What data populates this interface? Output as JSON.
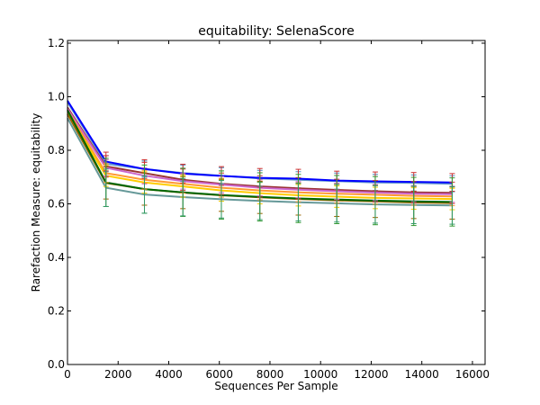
{
  "chart_data": {
    "type": "line",
    "title": "equitability: SelenaScore",
    "xlabel": "Sequences Per Sample",
    "ylabel": "Rarefaction Measure: equitability",
    "xlim": [
      0,
      16500
    ],
    "ylim": [
      0.0,
      1.21
    ],
    "xticks": [
      0,
      2000,
      4000,
      6000,
      8000,
      10000,
      12000,
      14000,
      16000
    ],
    "yticks": [
      0.0,
      0.2,
      0.4,
      0.6,
      0.8,
      1.0,
      1.2
    ],
    "xtick_labels": [
      "0",
      "2000",
      "4000",
      "6000",
      "8000",
      "10000",
      "12000",
      "14000",
      "16000"
    ],
    "ytick_labels": [
      "0.0",
      "0.2",
      "0.4",
      "0.6",
      "0.8",
      "1.0",
      "1.2"
    ],
    "grid": false,
    "legend": "none",
    "x": [
      0,
      1520,
      3040,
      4560,
      6080,
      7600,
      9120,
      10640,
      12160,
      13680,
      15200
    ],
    "series": [
      {
        "color": "#6699cc",
        "values": [
          0.98,
          0.75,
          0.73,
          0.715,
          0.705,
          0.695,
          0.69,
          0.685,
          0.68,
          0.678,
          0.675
        ],
        "err": [
          0.01,
          0.03,
          0.03,
          0.03,
          0.03,
          0.03,
          0.03,
          0.03,
          0.03,
          0.03,
          0.03
        ],
        "err_color": "#4a8fc0"
      },
      {
        "color": "#0000ff",
        "values": [
          0.985,
          0.758,
          0.73,
          0.713,
          0.704,
          0.697,
          0.694,
          0.687,
          0.684,
          0.682,
          0.68
        ],
        "err": [
          0.01,
          0.035,
          0.035,
          0.035,
          0.035,
          0.035,
          0.035,
          0.035,
          0.035,
          0.035,
          0.033
        ],
        "err_color": "#cc3333"
      },
      {
        "color": "#993333",
        "values": [
          0.96,
          0.74,
          0.715,
          0.69,
          0.675,
          0.665,
          0.658,
          0.652,
          0.647,
          0.643,
          0.641
        ],
        "err": [
          0.01,
          0.04,
          0.04,
          0.04,
          0.04,
          0.04,
          0.04,
          0.04,
          0.04,
          0.04,
          0.04
        ],
        "err_color": "#cc3333"
      },
      {
        "color": "#cc66cc",
        "values": [
          0.955,
          0.735,
          0.705,
          0.685,
          0.672,
          0.66,
          0.653,
          0.647,
          0.642,
          0.638,
          0.636
        ],
        "err": [
          0.01,
          0.03,
          0.03,
          0.03,
          0.03,
          0.03,
          0.03,
          0.03,
          0.03,
          0.03,
          0.03
        ],
        "err_color": "#cc66cc"
      },
      {
        "color": "#ff9933",
        "values": [
          0.95,
          0.715,
          0.69,
          0.675,
          0.66,
          0.65,
          0.643,
          0.638,
          0.634,
          0.63,
          0.628
        ],
        "err": [
          0.01,
          0.035,
          0.035,
          0.035,
          0.035,
          0.035,
          0.035,
          0.035,
          0.035,
          0.035,
          0.035
        ],
        "err_color": "#ff9933"
      },
      {
        "color": "#ffcc00",
        "values": [
          0.94,
          0.705,
          0.68,
          0.665,
          0.65,
          0.64,
          0.632,
          0.627,
          0.622,
          0.62,
          0.618
        ],
        "err": [
          0.01,
          0.04,
          0.04,
          0.04,
          0.04,
          0.04,
          0.04,
          0.04,
          0.04,
          0.04,
          0.04
        ],
        "err_color": "#ffcc00"
      },
      {
        "color": "#996600",
        "values": [
          0.935,
          0.678,
          0.655,
          0.642,
          0.632,
          0.624,
          0.618,
          0.613,
          0.609,
          0.605,
          0.603
        ],
        "err": [
          0.01,
          0.06,
          0.06,
          0.06,
          0.06,
          0.06,
          0.06,
          0.06,
          0.06,
          0.06,
          0.06
        ],
        "err_color": "#996600"
      },
      {
        "color": "#006600",
        "values": [
          0.95,
          0.68,
          0.655,
          0.643,
          0.633,
          0.626,
          0.62,
          0.616,
          0.612,
          0.609,
          0.607
        ],
        "err": [
          0.01,
          0.09,
          0.09,
          0.09,
          0.09,
          0.09,
          0.09,
          0.09,
          0.09,
          0.09,
          0.09
        ],
        "err_color": "#339933"
      },
      {
        "color": "#669999",
        "values": [
          0.92,
          0.66,
          0.635,
          0.625,
          0.617,
          0.611,
          0.606,
          0.602,
          0.598,
          0.596,
          0.594
        ],
        "err": [
          0.01,
          0.07,
          0.07,
          0.07,
          0.07,
          0.07,
          0.07,
          0.07,
          0.07,
          0.07,
          0.07
        ],
        "err_color": "#339966"
      }
    ]
  }
}
